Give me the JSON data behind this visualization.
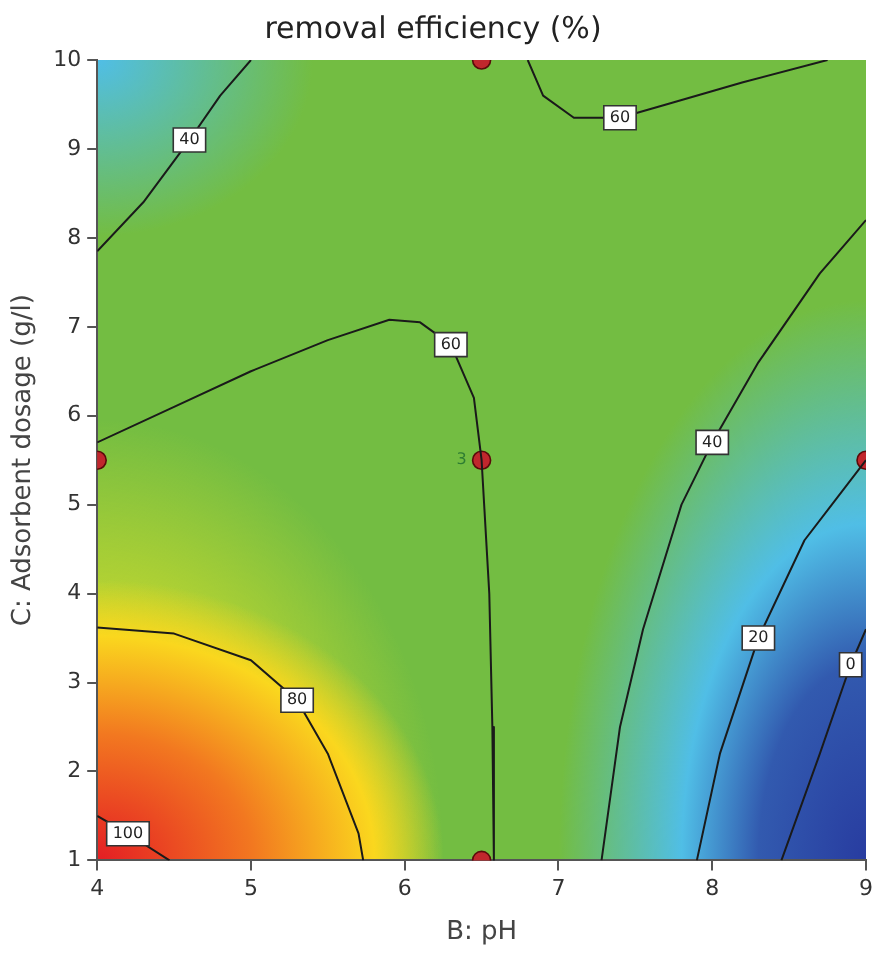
{
  "chart_data": {
    "type": "line",
    "title": "removal efficiency (%)",
    "xlabel": "B: pH",
    "ylabel": "C: Adsorbent dosage (g/l)",
    "xlim": [
      4,
      9
    ],
    "ylim": [
      1,
      10
    ],
    "xticks": [
      4,
      5,
      6,
      7,
      8,
      9
    ],
    "yticks": [
      1,
      2,
      3,
      4,
      5,
      6,
      7,
      8,
      9,
      10
    ],
    "grid": false,
    "legend": false,
    "marker": "none",
    "line_style": "solid",
    "series": [
      {
        "type": "line",
        "name": "100",
        "color": "#1a1a1a",
        "x": [
          4,
          4.2,
          4.47
        ],
        "values": [
          1.5,
          1.3,
          1
        ]
      },
      {
        "type": "line",
        "name": "80",
        "color": "#1a1a1a",
        "x": [
          4,
          4.5,
          5,
          5.3,
          5.5,
          5.7,
          5.73
        ],
        "values": [
          3.62,
          3.55,
          3.25,
          2.8,
          2.2,
          1.3,
          1
        ]
      },
      {
        "type": "line",
        "name": "60",
        "color": "#1a1a1a",
        "x": [
          4,
          4.5,
          5,
          5.5,
          5.9,
          6.1,
          6.3,
          6.45,
          6.5,
          6.55,
          6.57,
          6.58
        ],
        "values": [
          5.7,
          6.1,
          6.5,
          6.85,
          7.08,
          7.05,
          6.8,
          6.2,
          5.5,
          4,
          2.5,
          1
        ]
      },
      {
        "type": "line",
        "name": "60",
        "color": "#1a1a1a",
        "x": [
          6.8,
          6.9,
          7.1,
          7.4,
          7.7,
          8.2,
          8.75
        ],
        "values": [
          10,
          9.6,
          9.35,
          9.35,
          9.5,
          9.75,
          10
        ]
      },
      {
        "type": "line",
        "name": "40",
        "color": "#1a1a1a",
        "x": [
          4,
          4.3,
          4.6,
          4.8,
          5
        ],
        "values": [
          7.85,
          8.4,
          9.1,
          9.6,
          10
        ]
      },
      {
        "type": "line",
        "name": "40",
        "color": "#1a1a1a",
        "x": [
          7.28,
          7.4,
          7.55,
          7.8,
          8,
          8.3,
          8.7,
          9
        ],
        "values": [
          1,
          2.5,
          3.6,
          5,
          5.7,
          6.6,
          7.6,
          8.2
        ]
      },
      {
        "type": "line",
        "name": "20",
        "color": "#1a1a1a",
        "x": [
          7.9,
          8.05,
          8.3,
          8.6,
          9
        ],
        "values": [
          1,
          2.2,
          3.5,
          4.6,
          5.5
        ]
      },
      {
        "type": "line",
        "name": "0",
        "color": "#1a1a1a",
        "x": [
          8.45,
          8.7,
          8.9,
          9
        ],
        "values": [
          1,
          2.2,
          3.2,
          3.6
        ]
      },
      {
        "type": "scatter",
        "color": "#c0272d",
        "marker": "circle",
        "x": [
          4,
          6.5,
          6.5,
          6.5,
          9
        ],
        "values": [
          5.5,
          10,
          5.5,
          1,
          5.5
        ]
      }
    ],
    "annotations": [
      "3"
    ]
  }
}
